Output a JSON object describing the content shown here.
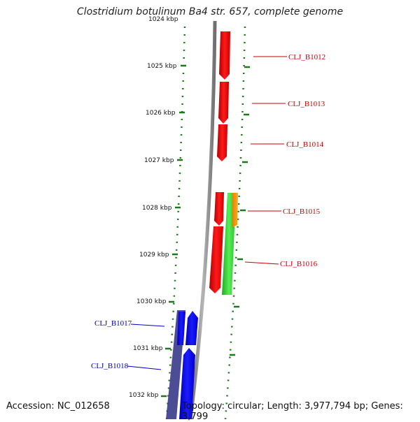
{
  "title": "Clostridium botulinum Ba4 str. 657, complete genome",
  "accession": "Accession: NC_012658",
  "topology": "Topology: circular; Length: 3,977,794 bp; Genes: 3,799",
  "ruler": {
    "top_label": "1024 kbp",
    "labels": [
      "1025 kbp",
      "1026 kbp",
      "1027 kbp",
      "1028 kbp",
      "1029 kbp",
      "1030 kbp",
      "1031 kbp",
      "1032 kbp"
    ]
  },
  "genes": {
    "forward": [
      "CLJ_B1012",
      "CLJ_B1013",
      "CLJ_B1014",
      "CLJ_B1015",
      "CLJ_B1016"
    ],
    "reverse": [
      "CLJ_B1017",
      "CLJ_B1018"
    ]
  },
  "colors": {
    "forward_gene": "#ff0000",
    "forward_label": "#cc0000",
    "reverse_gene": "#0000ff",
    "reverse_label": "#0000bb",
    "highlight_green": "#33cc33",
    "highlight_orange": "#ff9900",
    "dotted_track": "#1a7a1a",
    "backbone": "#8a8a8a",
    "reverse_shadow": "#3a3a8a"
  }
}
